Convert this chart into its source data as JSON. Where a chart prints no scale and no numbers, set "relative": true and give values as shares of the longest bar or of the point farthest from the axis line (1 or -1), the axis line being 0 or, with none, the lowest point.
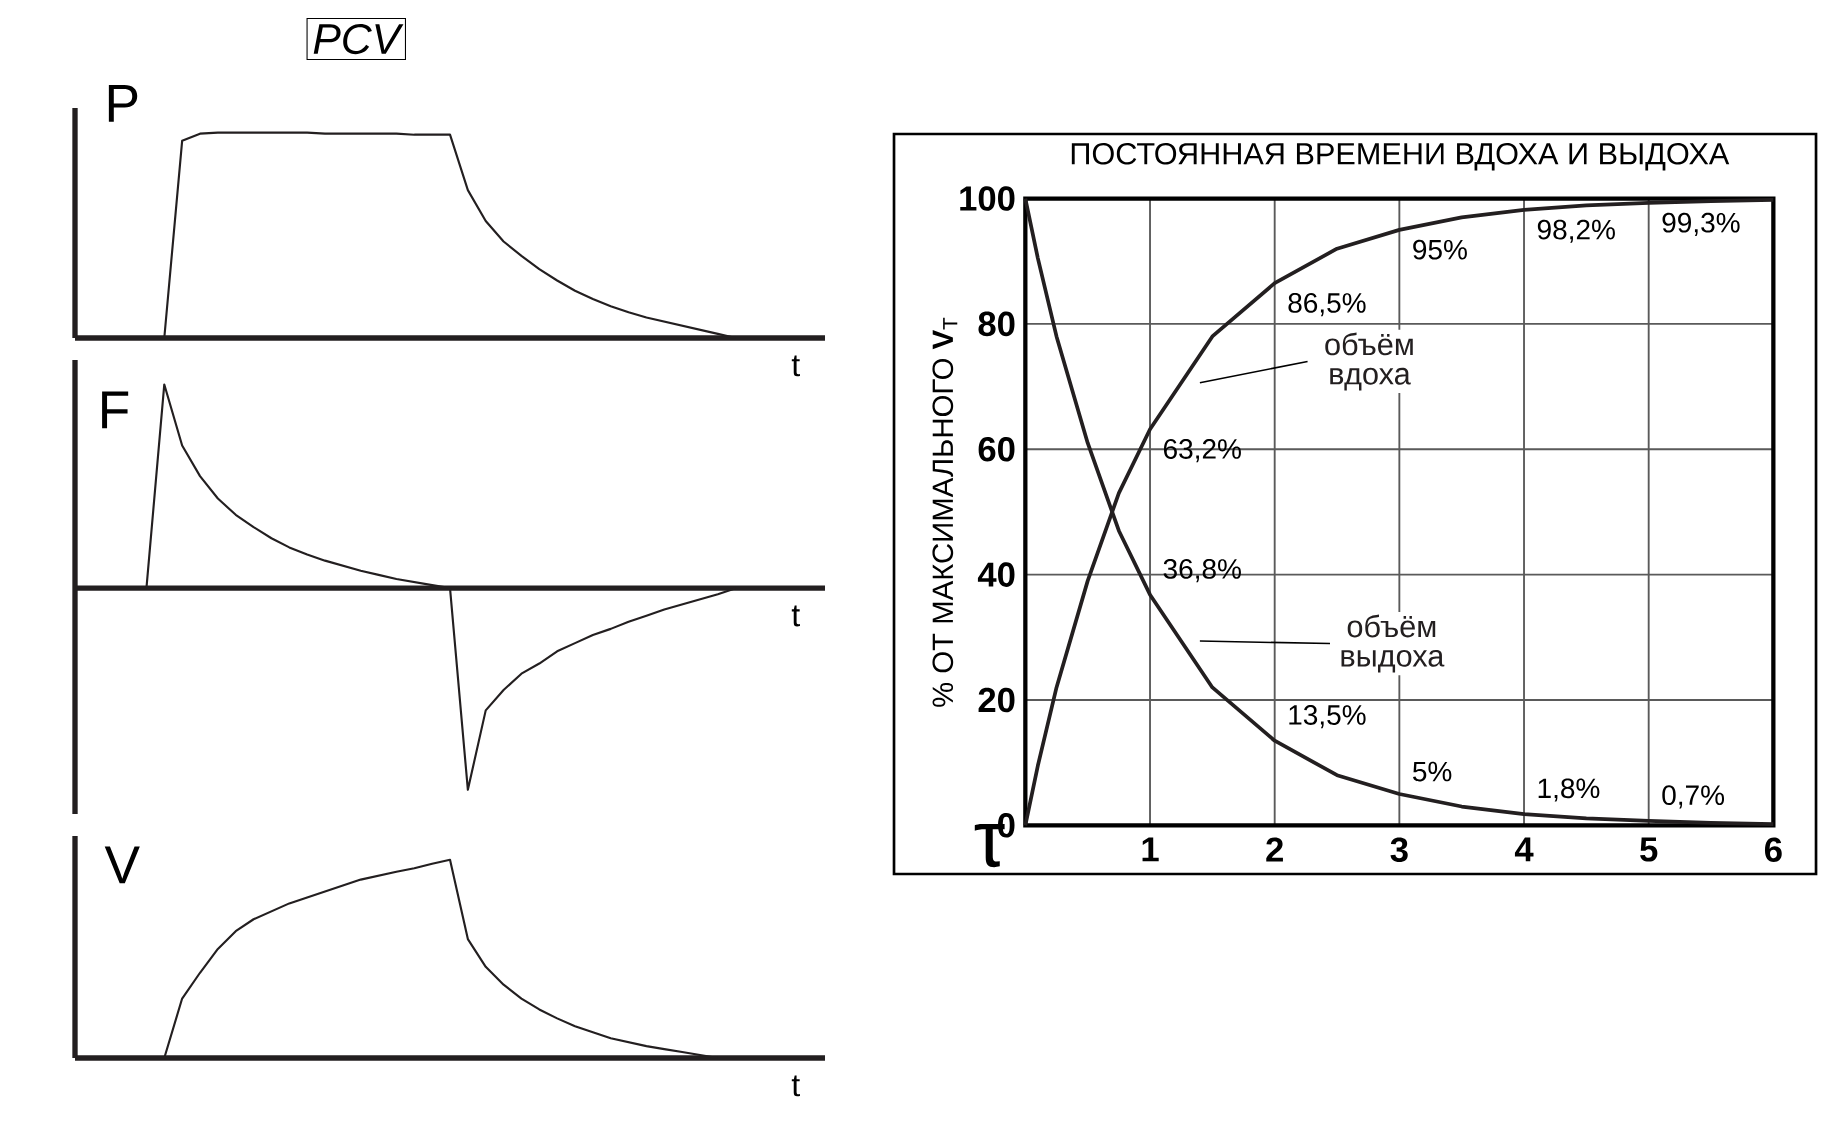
{
  "chart_data": [
    {
      "type": "line",
      "title": "PCV",
      "ylabel": "P",
      "xlabel": "t",
      "relative": true,
      "tick_labels": false,
      "categories": [
        null,
        null,
        null,
        null,
        null,
        null,
        null,
        null,
        null,
        null,
        null,
        null,
        null,
        null,
        null,
        null,
        null,
        null,
        null,
        null,
        null,
        null,
        null,
        null,
        null,
        null,
        null,
        null,
        null,
        null,
        null,
        null,
        null,
        null,
        null,
        null,
        null,
        null,
        null,
        null,
        null,
        null,
        null
      ],
      "values": [
        null,
        null,
        null,
        null,
        null,
        0,
        0.96,
        0.995,
        1,
        1,
        1,
        1,
        1,
        1,
        0.995,
        0.995,
        0.995,
        0.995,
        0.995,
        0.99,
        0.99,
        0.99,
        0.72,
        0.57,
        0.47,
        0.4,
        0.335,
        0.28,
        0.23,
        0.19,
        0.155,
        0.125,
        0.1,
        0.08,
        0.06,
        0.04,
        0.02,
        0,
        null,
        null,
        null,
        null,
        null
      ],
      "color": "#231f20"
    },
    {
      "type": "line",
      "ylabel": "F",
      "xlabel": "t",
      "relative": true,
      "tick_labels": false,
      "categories": [
        null,
        null,
        null,
        null,
        null,
        null,
        null,
        null,
        null,
        null,
        null,
        null,
        null,
        null,
        null,
        null,
        null,
        null,
        null,
        null,
        null,
        null,
        null,
        null,
        null,
        null,
        null,
        null,
        null,
        null,
        null,
        null,
        null,
        null,
        null,
        null,
        null,
        null,
        null,
        null,
        null,
        null,
        null
      ],
      "values": [
        null,
        null,
        null,
        null,
        0,
        1,
        0.7,
        0.55,
        0.44,
        0.36,
        0.3,
        0.245,
        0.2,
        0.165,
        0.135,
        0.11,
        0.085,
        0.065,
        0.045,
        0.03,
        0.015,
        0,
        -0.99,
        -0.6,
        -0.5,
        -0.42,
        -0.37,
        -0.31,
        -0.27,
        -0.23,
        -0.2,
        -0.165,
        -0.135,
        -0.105,
        -0.08,
        -0.055,
        -0.03,
        0,
        null,
        null,
        null,
        null,
        null
      ],
      "color": "#231f20"
    },
    {
      "type": "line",
      "ylabel": "V",
      "xlabel": "t",
      "relative": true,
      "tick_labels": false,
      "categories": [
        null,
        null,
        null,
        null,
        null,
        null,
        null,
        null,
        null,
        null,
        null,
        null,
        null,
        null,
        null,
        null,
        null,
        null,
        null,
        null,
        null,
        null,
        null,
        null,
        null,
        null,
        null,
        null,
        null,
        null,
        null,
        null,
        null,
        null,
        null,
        null,
        null,
        null,
        null,
        null,
        null,
        null,
        null
      ],
      "values": [
        null,
        null,
        null,
        null,
        null,
        0,
        0.3,
        0.43,
        0.55,
        0.64,
        0.7,
        0.74,
        0.78,
        0.81,
        0.84,
        0.87,
        0.9,
        0.92,
        0.94,
        0.957,
        0.98,
        1,
        0.6,
        0.46,
        0.37,
        0.3,
        0.245,
        0.2,
        0.16,
        0.13,
        0.1,
        0.08,
        0.06,
        0.045,
        0.03,
        0.015,
        0,
        null,
        null,
        null,
        null,
        null,
        null
      ],
      "color": "#231f20"
    },
    {
      "type": "line",
      "title": "ПОСТОЯННАЯ ВРЕМЕНИ ВДОХА И ВЫДОХА",
      "xlabel": "τ",
      "ylabel": "% ОТ МАКСИМАЛЬНОГО **V**$_{Т}$",
      "x": [
        0,
        0.1,
        0.25,
        0.5,
        0.75,
        1,
        1.5,
        2,
        2.5,
        3,
        3.5,
        4,
        4.5,
        5,
        5.5,
        6
      ],
      "xlim": [
        0,
        6
      ],
      "ylim": [
        0,
        100
      ],
      "xticks": [
        1,
        2,
        3,
        4,
        5,
        6
      ],
      "yticks": [
        0,
        20,
        40,
        60,
        80,
        100
      ],
      "grid": true,
      "series": [
        {
          "name": "объём вдоха",
          "color": "#231f20",
          "values": [
            0,
            9.5,
            22,
            39,
            53,
            63.2,
            78,
            86.5,
            92,
            95,
            97,
            98.2,
            98.9,
            99.3,
            99.6,
            99.8
          ],
          "value_labels": [
            null,
            null,
            null,
            null,
            null,
            "63,2%",
            null,
            "86,5%",
            null,
            "95%",
            null,
            "98,2%",
            null,
            "99,3%",
            null,
            null
          ]
        },
        {
          "name": "объём выдоха",
          "color": "#231f20",
          "values": [
            100,
            90.5,
            78,
            61,
            47,
            36.8,
            22,
            13.5,
            8,
            5,
            3,
            1.8,
            1.1,
            0.7,
            0.4,
            0.2
          ],
          "value_labels": [
            null,
            null,
            null,
            null,
            null,
            "36,8%",
            null,
            "13,5%",
            null,
            "5%",
            null,
            "1,8%",
            null,
            "0,7%",
            null,
            null
          ]
        }
      ]
    }
  ]
}
